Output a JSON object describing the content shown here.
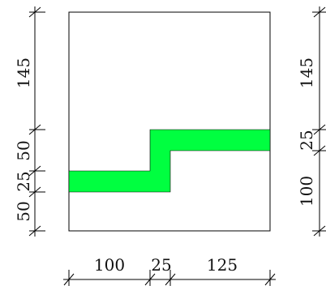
{
  "section": {
    "fill_color": "#00ff40",
    "outline_color": "#000000"
  },
  "dims": {
    "left": {
      "top": "145",
      "upper_mid": "50",
      "mid": "25",
      "bottom": "50"
    },
    "right": {
      "top": "145",
      "mid": "25",
      "bottom": "100"
    },
    "bottom": {
      "left": "100",
      "mid": "25",
      "right": "125"
    }
  }
}
